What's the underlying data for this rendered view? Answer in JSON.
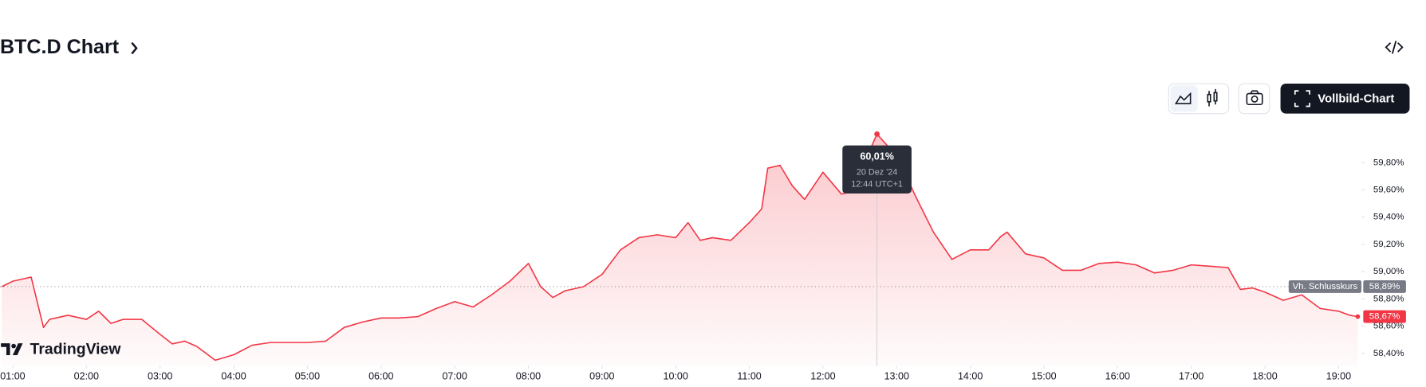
{
  "chart_data": {
    "type": "line",
    "title": "BTC.D Chart",
    "button_label": "Vollbild-Chart",
    "logo": "TradingView",
    "color": "#f23645",
    "x": [
      0.85,
      1,
      1.25,
      1.417,
      1.5,
      1.75,
      2,
      2.167,
      2.333,
      2.5,
      2.75,
      3,
      3.167,
      3.333,
      3.5,
      3.75,
      4,
      4.25,
      4.5,
      4.75,
      5,
      5.25,
      5.5,
      5.75,
      6,
      6.25,
      6.5,
      6.75,
      7,
      7.25,
      7.5,
      7.75,
      8,
      8.167,
      8.333,
      8.5,
      8.75,
      9,
      9.25,
      9.5,
      9.75,
      10,
      10.167,
      10.333,
      10.5,
      10.75,
      11,
      11.167,
      11.25,
      11.417,
      11.583,
      11.75,
      12,
      12.25,
      12.5,
      12.667,
      12.733,
      12.917,
      13.083,
      13.25,
      13.5,
      13.75,
      14,
      14.25,
      14.417,
      14.5,
      14.75,
      15,
      15.25,
      15.5,
      15.75,
      16,
      16.25,
      16.5,
      16.75,
      17,
      17.25,
      17.5,
      17.667,
      17.833,
      18,
      18.25,
      18.5,
      18.75,
      19,
      19.15,
      19.26
    ],
    "values": [
      58.89,
      58.93,
      58.96,
      58.59,
      58.65,
      58.68,
      58.65,
      58.71,
      58.62,
      58.65,
      58.65,
      58.54,
      58.47,
      58.49,
      58.45,
      58.35,
      58.39,
      58.46,
      58.48,
      58.48,
      58.48,
      58.49,
      58.59,
      58.63,
      58.66,
      58.66,
      58.67,
      58.73,
      58.78,
      58.74,
      58.83,
      58.93,
      59.06,
      58.89,
      58.81,
      58.86,
      58.89,
      58.98,
      59.16,
      59.25,
      59.27,
      59.25,
      59.36,
      59.23,
      59.25,
      59.23,
      59.36,
      59.46,
      59.76,
      59.78,
      59.63,
      59.53,
      59.73,
      59.57,
      59.6,
      59.93,
      60.01,
      59.9,
      59.76,
      59.56,
      59.29,
      59.09,
      59.16,
      59.16,
      59.26,
      59.29,
      59.13,
      59.1,
      59.01,
      59.01,
      59.06,
      59.07,
      59.05,
      58.99,
      59.01,
      59.05,
      59.04,
      59.03,
      58.87,
      58.88,
      58.85,
      58.79,
      58.83,
      58.73,
      58.71,
      58.68,
      58.67
    ],
    "xlim": [
      0.827,
      19.31
    ],
    "ylim": [
      58.307,
      60.067
    ],
    "xticks": [
      {
        "value": 1,
        "label": "01:00"
      },
      {
        "value": 2,
        "label": "02:00"
      },
      {
        "value": 3,
        "label": "03:00"
      },
      {
        "value": 4,
        "label": "04:00"
      },
      {
        "value": 5,
        "label": "05:00"
      },
      {
        "value": 6,
        "label": "06:00"
      },
      {
        "value": 7,
        "label": "07:00"
      },
      {
        "value": 8,
        "label": "08:00"
      },
      {
        "value": 9,
        "label": "09:00"
      },
      {
        "value": 10,
        "label": "10:00"
      },
      {
        "value": 11,
        "label": "11:00"
      },
      {
        "value": 12,
        "label": "12:00"
      },
      {
        "value": 13,
        "label": "13:00"
      },
      {
        "value": 14,
        "label": "14:00"
      },
      {
        "value": 15,
        "label": "15:00"
      },
      {
        "value": 16,
        "label": "16:00"
      },
      {
        "value": 17,
        "label": "17:00"
      },
      {
        "value": 18,
        "label": "18:00"
      },
      {
        "value": 19,
        "label": "19:00"
      }
    ],
    "yticks": [
      {
        "value": 58.4,
        "label": "58,40%"
      },
      {
        "value": 58.6,
        "label": "58,60%"
      },
      {
        "value": 58.8,
        "label": "58,80%"
      },
      {
        "value": 59.0,
        "label": "59,00%"
      },
      {
        "value": 59.2,
        "label": "59,20%"
      },
      {
        "value": 59.4,
        "label": "59,40%"
      },
      {
        "value": 59.6,
        "label": "59,60%"
      },
      {
        "value": 59.8,
        "label": "59,80%"
      }
    ],
    "previous_close": {
      "name": "Vh. Schlusskurs",
      "value": 58.89,
      "label": "58,89%"
    },
    "last": {
      "value": 58.67,
      "label": "58,67%"
    },
    "tooltip": {
      "x": 12.733,
      "value": 60.01,
      "label": "60,01%",
      "date": "20 Dez '24",
      "time": "12:44 UTC+1"
    }
  }
}
